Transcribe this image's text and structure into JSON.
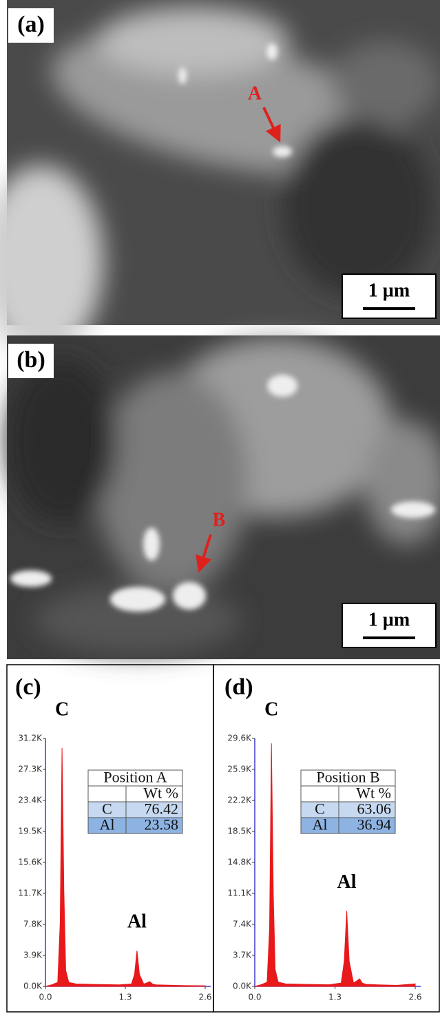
{
  "images": [
    {
      "label": "(a)",
      "marker": "A",
      "scale_bar": "1 µm"
    },
    {
      "label": "(b)",
      "marker": "B",
      "scale_bar": "1 µm"
    }
  ],
  "chart_data": [
    {
      "type": "area",
      "label": "(c)",
      "color": "#e8191b",
      "annotations": [
        "C",
        "Al"
      ],
      "x": [
        0,
        0.1,
        0.2,
        0.24,
        0.27,
        0.3,
        0.33,
        0.38,
        0.5,
        0.8,
        1.2,
        1.4,
        1.45,
        1.49,
        1.53,
        1.6,
        1.7,
        1.74,
        1.8,
        2.0,
        2.3,
        2.6
      ],
      "values": [
        0,
        200,
        500,
        8000,
        30000,
        12000,
        2000,
        500,
        300,
        250,
        200,
        300,
        1500,
        4500,
        1500,
        300,
        600,
        300,
        200,
        150,
        100,
        80
      ],
      "xlim": [
        0,
        2.6
      ],
      "xticks": [
        {
          "value": 0,
          "label": "0.0"
        },
        1.3,
        2.6
      ],
      "ylim": [
        0,
        31200
      ],
      "yticks": [
        {
          "value": 0,
          "label": "0.0K"
        },
        {
          "value": 3900,
          "label": "3.9K"
        },
        {
          "value": 7800,
          "label": "7.8K"
        },
        {
          "value": 11700,
          "label": "11.7K"
        },
        {
          "value": 15600,
          "label": "15.6K"
        },
        {
          "value": 19500,
          "label": "19.5K"
        },
        {
          "value": 23400,
          "label": "23.4K"
        },
        {
          "value": 27300,
          "label": "27.3K"
        },
        {
          "value": 31200,
          "label": "31.2K"
        }
      ],
      "table": {
        "title": "Position A",
        "header": "Wt %",
        "rows": [
          [
            "C",
            76.42
          ],
          [
            "Al",
            23.58
          ]
        ]
      }
    },
    {
      "type": "area",
      "label": "(d)",
      "color": "#e8191b",
      "annotations": [
        "C",
        "Al"
      ],
      "x": [
        0,
        0.1,
        0.2,
        0.24,
        0.27,
        0.3,
        0.33,
        0.38,
        0.5,
        0.8,
        1.2,
        1.4,
        1.45,
        1.49,
        1.53,
        1.6,
        1.7,
        1.74,
        1.8,
        2.0,
        2.3,
        2.6
      ],
      "values": [
        0,
        200,
        500,
        7000,
        29000,
        11000,
        2000,
        500,
        300,
        250,
        200,
        400,
        3000,
        9000,
        3000,
        400,
        900,
        400,
        250,
        180,
        120,
        300
      ],
      "xlim": [
        0,
        2.6
      ],
      "xticks": [
        {
          "value": 0,
          "label": "0.0"
        },
        1.3,
        2.6
      ],
      "ylim": [
        0,
        29600
      ],
      "yticks": [
        {
          "value": 0,
          "label": "0.0K"
        },
        {
          "value": 3700,
          "label": "3.7K"
        },
        {
          "value": 7400,
          "label": "7.4K"
        },
        {
          "value": 11100,
          "label": "11.1K"
        },
        {
          "value": 14800,
          "label": "14.8K"
        },
        {
          "value": 18500,
          "label": "18.5K"
        },
        {
          "value": 22200,
          "label": "22.2K"
        },
        {
          "value": 25900,
          "label": "25.9K"
        },
        {
          "value": 29600,
          "label": "29.6K"
        }
      ],
      "table": {
        "title": "Position B",
        "header": "Wt %",
        "rows": [
          [
            "C",
            63.06
          ],
          [
            "Al",
            36.94
          ]
        ]
      }
    }
  ]
}
